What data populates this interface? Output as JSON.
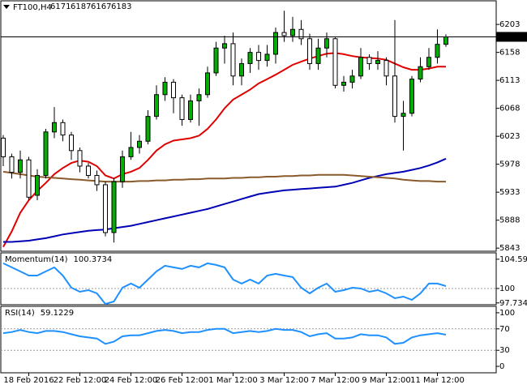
{
  "chart_data": [
    {
      "type": "candlestick",
      "title": "FT100,H4",
      "categories": [
        null,
        null,
        null,
        "18 Feb 2016",
        null,
        null,
        null,
        null,
        null,
        "22 Feb 12:00",
        null,
        null,
        null,
        null,
        null,
        "24 Feb 12:00",
        null,
        null,
        null,
        null,
        null,
        "26 Feb 12:00",
        null,
        null,
        null,
        null,
        null,
        "1 Mar 12:00",
        null,
        null,
        null,
        null,
        null,
        "3 Mar 12:00",
        null,
        null,
        null,
        null,
        null,
        "7 Mar 12:00",
        null,
        null,
        null,
        null,
        null,
        "9 Mar 12:00",
        null,
        null,
        null,
        null,
        null,
        "11 Mar 12:00",
        null
      ],
      "open": [
        6020,
        5990,
        5965,
        5985,
        5928,
        5960,
        6030,
        6045,
        6025,
        6000,
        5975,
        5960,
        5945,
        5868,
        5950,
        5990,
        6005,
        6015,
        6055,
        6090,
        6110,
        6085,
        6050,
        6080,
        6090,
        6125,
        6165,
        6172,
        6120,
        6140,
        6158,
        6145,
        6155,
        6190,
        6185,
        6195,
        6180,
        6140,
        6165,
        6180,
        6105,
        6110,
        6120,
        6150,
        6140,
        6145,
        6120,
        6055,
        6060,
        6115,
        6135,
        6150,
        6171
      ],
      "high": [
        6025,
        5995,
        6000,
        5990,
        5970,
        6035,
        6070,
        6050,
        6030,
        6005,
        5980,
        5968,
        5950,
        5955,
        6000,
        6030,
        6025,
        6065,
        6105,
        6118,
        6115,
        6090,
        6090,
        6100,
        6135,
        6175,
        6185,
        6190,
        6148,
        6165,
        6170,
        6170,
        6198,
        6225,
        6215,
        6210,
        6188,
        6180,
        6190,
        6182,
        6120,
        6130,
        6165,
        6155,
        6160,
        6150,
        6210,
        6080,
        6120,
        6150,
        6165,
        6195,
        6187
      ],
      "low": [
        5975,
        5955,
        5955,
        5920,
        5920,
        5955,
        6020,
        6015,
        5985,
        5965,
        5955,
        5935,
        5862,
        5852,
        5940,
        5985,
        5995,
        6010,
        6050,
        6080,
        6060,
        6040,
        6045,
        6040,
        6085,
        6120,
        6140,
        6105,
        6105,
        6125,
        6130,
        6135,
        6140,
        6175,
        6175,
        6170,
        6130,
        6130,
        6150,
        6100,
        6095,
        6100,
        6115,
        6130,
        6130,
        6105,
        6045,
        6000,
        6055,
        6110,
        6130,
        6140,
        6167
      ],
      "close": [
        5990,
        5965,
        5985,
        5925,
        5960,
        6030,
        6045,
        6025,
        6000,
        5975,
        5960,
        5945,
        5868,
        5950,
        5990,
        6005,
        6015,
        6055,
        6090,
        6110,
        6085,
        6050,
        6080,
        6090,
        6125,
        6165,
        6172,
        6120,
        6140,
        6158,
        6145,
        6155,
        6190,
        6185,
        6195,
        6180,
        6140,
        6165,
        6180,
        6105,
        6110,
        6120,
        6150,
        6140,
        6145,
        6120,
        6055,
        6060,
        6115,
        6135,
        6150,
        6171,
        6183
      ],
      "up_color": "#00b000",
      "down_color": "#ffffff",
      "wick_color": "#000000",
      "lines": [
        {
          "color": "#e00000",
          "values": [
            5845,
            5870,
            5900,
            5920,
            5935,
            5948,
            5962,
            5972,
            5980,
            5984,
            5982,
            5975,
            5960,
            5955,
            5962,
            5966,
            5972,
            5985,
            6000,
            6010,
            6016,
            6018,
            6020,
            6024,
            6035,
            6050,
            6068,
            6082,
            6090,
            6098,
            6108,
            6115,
            6122,
            6130,
            6138,
            6143,
            6148,
            6152,
            6156,
            6157,
            6155,
            6152,
            6150,
            6149,
            6148,
            6146,
            6140,
            6134,
            6130,
            6130,
            6132,
            6135,
            6135
          ]
        },
        {
          "color": "#0000b4",
          "values": [
            5853,
            5853,
            5854,
            5855,
            5857,
            5859,
            5862,
            5865,
            5867,
            5869,
            5871,
            5872,
            5873,
            5875,
            5877,
            5879,
            5882,
            5885,
            5888,
            5891,
            5894,
            5897,
            5900,
            5903,
            5906,
            5910,
            5914,
            5918,
            5922,
            5926,
            5930,
            5932,
            5934,
            5936,
            5937,
            5938,
            5939,
            5940,
            5941,
            5942,
            5945,
            5948,
            5952,
            5956,
            5959,
            5962,
            5964,
            5966,
            5969,
            5972,
            5976,
            5981,
            5987
          ]
        },
        {
          "color": "#8b5a2b",
          "values": [
            5966,
            5964,
            5962,
            5960,
            5958,
            5957,
            5956,
            5955,
            5954,
            5953,
            5952,
            5951,
            5950,
            5950,
            5950,
            5950,
            5951,
            5951,
            5952,
            5952,
            5953,
            5953,
            5954,
            5954,
            5955,
            5955,
            5955,
            5956,
            5956,
            5957,
            5957,
            5958,
            5958,
            5959,
            5959,
            5960,
            5960,
            5961,
            5961,
            5961,
            5961,
            5960,
            5959,
            5958,
            5957,
            5956,
            5955,
            5953,
            5952,
            5951,
            5951,
            5950,
            5950
          ]
        }
      ],
      "ylim": [
        5838,
        6241
      ],
      "yticks": [
        6203,
        6158,
        6113,
        6068,
        6023,
        5978,
        5933,
        5888,
        5843
      ]
    },
    {
      "type": "line",
      "title": "Momentum(14)",
      "color": "#1e90ff",
      "values": [
        103.96,
        103.32,
        102.68,
        102.04,
        102.04,
        102.68,
        103.32,
        102.04,
        100.13,
        99.49,
        99.74,
        99.23,
        97.57,
        97.96,
        100.13,
        100.77,
        100.13,
        101.4,
        102.68,
        103.58,
        103.32,
        103.07,
        103.58,
        103.32,
        103.96,
        103.7,
        103.32,
        101.4,
        100.77,
        101.4,
        100.77,
        102.04,
        102.3,
        102.04,
        101.79,
        100.13,
        99.23,
        100.13,
        100.77,
        99.49,
        99.74,
        100.13,
        100,
        99.49,
        99.74,
        99.23,
        98.47,
        98.72,
        98.21,
        99.23,
        100.77,
        100.77,
        100.3734
      ],
      "ylim": [
        97.45,
        105.6
      ],
      "yticks": [
        104.5984,
        100,
        97.7348
      ],
      "levels": [
        100
      ]
    },
    {
      "type": "line",
      "title": "RSI(14)",
      "color": "#1e90ff",
      "values": [
        62,
        64,
        68,
        64,
        62,
        66,
        66,
        64,
        60,
        56,
        54,
        52,
        42,
        46,
        56,
        58,
        58,
        62,
        66,
        68,
        66,
        62,
        64,
        64,
        68,
        70,
        70,
        62,
        64,
        66,
        64,
        66,
        70,
        68,
        68,
        64,
        56,
        60,
        62,
        52,
        52,
        54,
        60,
        58,
        58,
        54,
        42,
        44,
        54,
        58,
        60,
        62,
        59.1229
      ],
      "ylim": [
        -12,
        112
      ],
      "yticks": [
        100,
        70,
        30,
        0
      ],
      "levels": [
        70,
        30
      ]
    }
  ]
}
